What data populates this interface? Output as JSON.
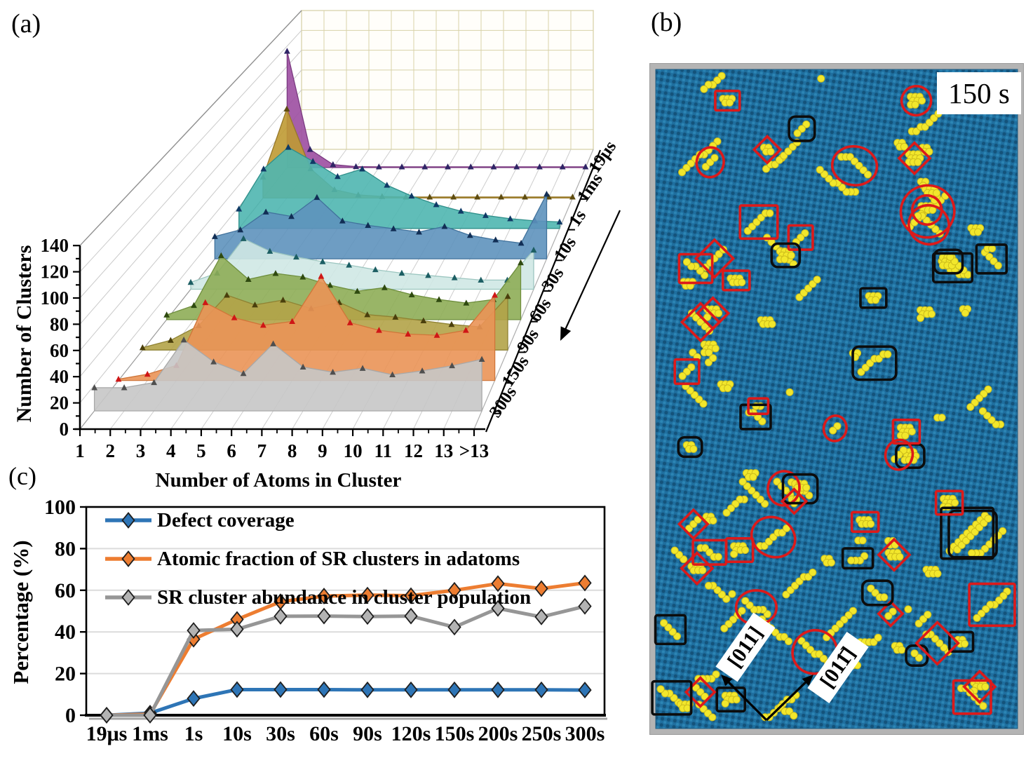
{
  "figure_labels": {
    "panel_a": "(a)",
    "panel_b": "(b)",
    "panel_c": "(c)"
  },
  "chart_data": [
    {
      "id": "panel_a_waterfall",
      "type": "area",
      "projection": "3d-waterfall",
      "xlabel": "Number of Atoms in Cluster",
      "ylabel": "Number of Clusters",
      "ylim": [
        0,
        140
      ],
      "ytick_step": 20,
      "categories": [
        "1",
        "2",
        "3",
        "4",
        "5",
        "6",
        "7",
        "8",
        "9",
        "10",
        "11",
        "12",
        "13",
        ">13"
      ],
      "depth_order": "back-to-front",
      "series": [
        {
          "name": "19μs",
          "fill": "#9c4ea1",
          "edge": "#7a3a80",
          "marker": "#2f2566",
          "values": [
            115,
            18,
            3,
            1,
            0.8,
            0.8,
            0.8,
            0.8,
            0.8,
            0.8,
            0.8,
            0.8,
            0.8,
            0.8
          ]
        },
        {
          "name": "1ms",
          "fill": "#bf9a33",
          "edge": "#96782a",
          "marker": "#5e4c10",
          "values": [
            20,
            85,
            28,
            8,
            3,
            1.5,
            1,
            1,
            1,
            1,
            1,
            1,
            1,
            1
          ]
        },
        {
          "name": "1s",
          "fill": "#4fb6b0",
          "edge": "#2f8f8a",
          "marker": "#0f3a66",
          "values": [
            18,
            55,
            75,
            62,
            48,
            55,
            40,
            30,
            22,
            16,
            12,
            9,
            7,
            6
          ]
        },
        {
          "name": "10s",
          "fill": "#5e92bd",
          "edge": "#41729c",
          "marker": "#112e55",
          "values": [
            20,
            26,
            42,
            38,
            55,
            34,
            30,
            27,
            24,
            29,
            21,
            17,
            14,
            58
          ]
        },
        {
          "name": "30s",
          "fill": "#cfe8e4",
          "edge": "#9cc6c0",
          "marker": "#1c5e63",
          "values": [
            6,
            14,
            44,
            33,
            28,
            24,
            21,
            17,
            14,
            12,
            10,
            8,
            8,
            34
          ]
        },
        {
          "name": "60s",
          "fill": "#8ead57",
          "edge": "#6f8f3e",
          "marker": "#2f4a10",
          "values": [
            4,
            12,
            54,
            34,
            39,
            36,
            29,
            24,
            27,
            21,
            17,
            14,
            17,
            48
          ]
        },
        {
          "name": "90s",
          "fill": "#b3a348",
          "edge": "#8f8233",
          "marker": "#4a3f0c",
          "values": [
            2,
            8,
            20,
            45,
            37,
            41,
            34,
            39,
            29,
            27,
            24,
            21,
            19,
            44
          ]
        },
        {
          "name": "150s",
          "fill": "#ea9356",
          "edge": "#d0763a",
          "marker": "#cf1616",
          "values": [
            1,
            5,
            12,
            62,
            50,
            44,
            47,
            83,
            46,
            40,
            37,
            36,
            40,
            68
          ]
        },
        {
          "name": "300s",
          "fill": "#c7c7c7",
          "edge": "#a8a8a8",
          "marker": "#4f4f4f",
          "values": [
            18,
            18,
            22,
            55,
            38,
            29,
            52,
            34,
            30,
            33,
            28,
            31,
            35,
            40
          ]
        }
      ]
    },
    {
      "id": "panel_c_lines",
      "type": "line",
      "ylabel": "Percentage (%)",
      "ylim": [
        0,
        100
      ],
      "ytick_step": 20,
      "grid": "horizontal",
      "legend_position": "top-left-inside",
      "categories": [
        "19μs",
        "1ms",
        "1s",
        "10s",
        "30s",
        "60s",
        "90s",
        "120s",
        "150s",
        "200s",
        "250s",
        "300s"
      ],
      "series": [
        {
          "name": "Defect coverage",
          "color": "#2e75b6",
          "marker_fill": "#2e75b6",
          "values": [
            0,
            1,
            8,
            12.3,
            12.3,
            12.3,
            12.2,
            12.2,
            12.2,
            12.2,
            12.2,
            12.1
          ]
        },
        {
          "name": "Atomic fraction of SR clusters in adatoms",
          "color": "#ed7d31",
          "marker_fill": "#ed7d31",
          "values": [
            0,
            0.5,
            36.5,
            46,
            54.5,
            57.2,
            57.7,
            57.4,
            60,
            63.2,
            60.8,
            63.5
          ]
        },
        {
          "name": "SR cluster abundance in cluster population",
          "color": "#969696",
          "marker_fill": "#b3b3b3",
          "values": [
            0,
            0,
            40.7,
            41.3,
            47.5,
            47.6,
            47.4,
            47.6,
            42.3,
            51.3,
            47.2,
            52.3
          ]
        }
      ]
    }
  ],
  "panel_b": {
    "time_label": "150 s",
    "direction_label_1": "[011]",
    "direction_label_2": "[011̄]",
    "cluster_count": 120,
    "annotations": {
      "red_ellipses": 12,
      "red_diamonds": 13,
      "red_rects": 14,
      "black_rects": 20
    },
    "colors": {
      "substrate": "#1f6f9f",
      "substrate_dot_dark": "#14537b",
      "substrate_dot_light": "#2e89b8",
      "adatom": "#f2e72c",
      "adatom_edge": "#cdbd1d",
      "red_annotation": "#dc1a1a",
      "black_annotation": "#0c0c0c",
      "frame": "#b4b4b4",
      "label_bg": "#ffffff"
    }
  }
}
